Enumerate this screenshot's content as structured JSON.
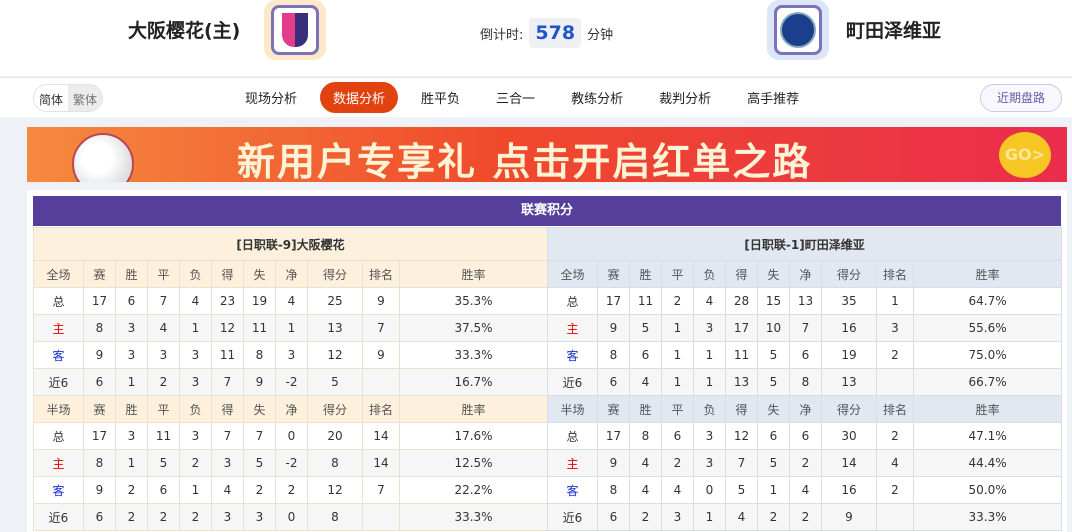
{
  "header": {
    "home_team": "大阪樱花(主)",
    "away_team": "町田泽维亚",
    "countdown_label": "倒计时:",
    "countdown_value": "578",
    "countdown_unit": "分钟"
  },
  "nav": {
    "lang": [
      "简体",
      "繁体"
    ],
    "tabs": [
      "现场分析",
      "数据分析",
      "胜平负",
      "三合一",
      "教练分析",
      "裁判分析",
      "高手推荐"
    ],
    "active": "数据分析",
    "recent": "近期盘路"
  },
  "banner": {
    "text": "新用户专享礼 点击开启红单之路",
    "go": "GO>"
  },
  "standings": {
    "title": "联赛积分",
    "columns_full": [
      "全场",
      "赛",
      "胜",
      "平",
      "负",
      "得",
      "失",
      "净",
      "得分",
      "排名",
      "胜率"
    ],
    "columns_half": [
      "半场",
      "赛",
      "胜",
      "平",
      "负",
      "得",
      "失",
      "净",
      "得分",
      "排名",
      "胜率"
    ],
    "tables": [
      {
        "caption": "[日职联-9]大阪樱花",
        "full": [
          [
            "总",
            "17",
            "6",
            "7",
            "4",
            "23",
            "19",
            "4",
            "25",
            "9",
            "35.3%"
          ],
          [
            "主",
            "8",
            "3",
            "4",
            "1",
            "12",
            "11",
            "1",
            "13",
            "7",
            "37.5%"
          ],
          [
            "客",
            "9",
            "3",
            "3",
            "3",
            "11",
            "8",
            "3",
            "12",
            "9",
            "33.3%"
          ],
          [
            "近6",
            "6",
            "1",
            "2",
            "3",
            "7",
            "9",
            "-2",
            "5",
            "",
            "16.7%"
          ]
        ],
        "half": [
          [
            "总",
            "17",
            "3",
            "11",
            "3",
            "7",
            "7",
            "0",
            "20",
            "14",
            "17.6%"
          ],
          [
            "主",
            "8",
            "1",
            "5",
            "2",
            "3",
            "5",
            "-2",
            "8",
            "14",
            "12.5%"
          ],
          [
            "客",
            "9",
            "2",
            "6",
            "1",
            "4",
            "2",
            "2",
            "12",
            "7",
            "22.2%"
          ],
          [
            "近6",
            "6",
            "2",
            "2",
            "2",
            "3",
            "3",
            "0",
            "8",
            "",
            "33.3%"
          ]
        ]
      },
      {
        "caption": "[日职联-1]町田泽维亚",
        "full": [
          [
            "总",
            "17",
            "11",
            "2",
            "4",
            "28",
            "15",
            "13",
            "35",
            "1",
            "64.7%"
          ],
          [
            "主",
            "9",
            "5",
            "1",
            "3",
            "17",
            "10",
            "7",
            "16",
            "3",
            "55.6%"
          ],
          [
            "客",
            "8",
            "6",
            "1",
            "1",
            "11",
            "5",
            "6",
            "19",
            "2",
            "75.0%"
          ],
          [
            "近6",
            "6",
            "4",
            "1",
            "1",
            "13",
            "5",
            "8",
            "13",
            "",
            "66.7%"
          ]
        ],
        "half": [
          [
            "总",
            "17",
            "8",
            "6",
            "3",
            "12",
            "6",
            "6",
            "30",
            "2",
            "47.1%"
          ],
          [
            "主",
            "9",
            "4",
            "2",
            "3",
            "7",
            "5",
            "2",
            "14",
            "4",
            "44.4%"
          ],
          [
            "客",
            "8",
            "4",
            "4",
            "0",
            "5",
            "1",
            "4",
            "16",
            "2",
            "50.0%"
          ],
          [
            "近6",
            "6",
            "2",
            "3",
            "1",
            "4",
            "2",
            "2",
            "9",
            "",
            "33.3%"
          ]
        ]
      }
    ]
  },
  "colors": {
    "accent": "#e1420f",
    "title_bar": "#553f9a",
    "home": "#ee0000",
    "away": "#1530d0"
  }
}
